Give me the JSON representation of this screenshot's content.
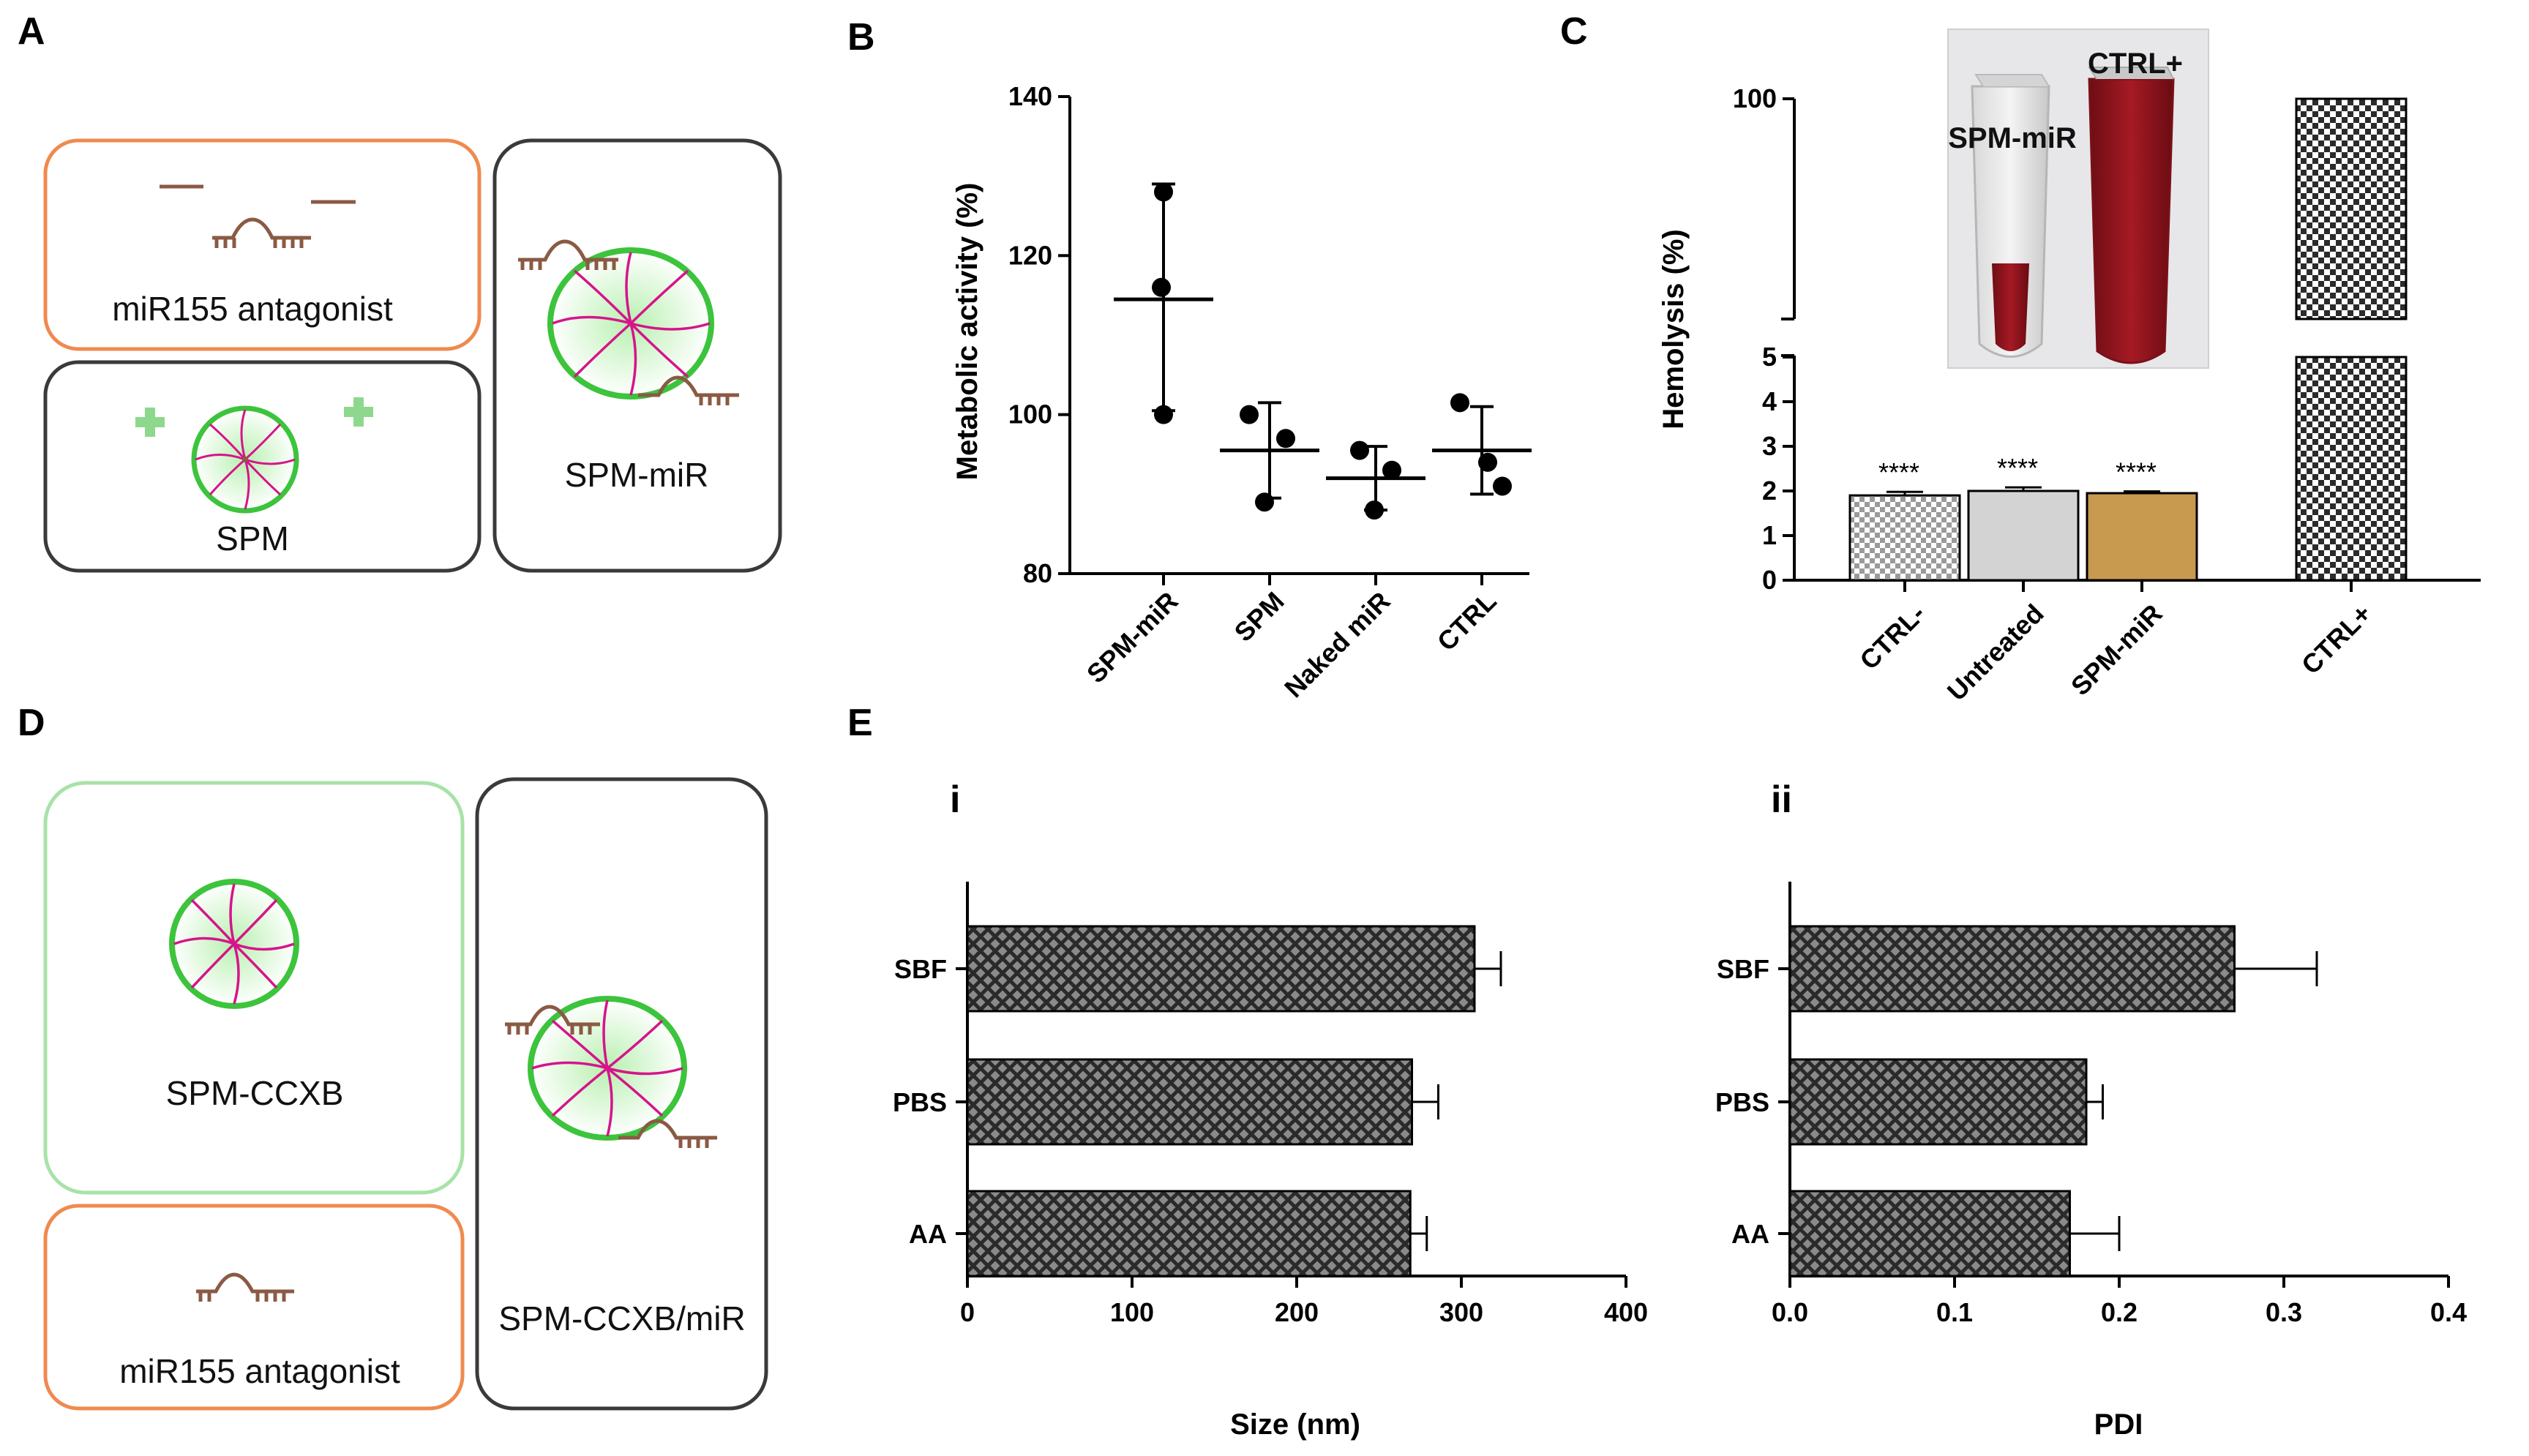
{
  "panels": {
    "A": "A",
    "B": "B",
    "C": "C",
    "D": "D",
    "E": "E",
    "Ei": "i",
    "Eii": "ii"
  },
  "schematic_A": {
    "antagonist": "miR155 antagonist",
    "spm": "SPM",
    "spm_mir": "SPM-miR"
  },
  "schematic_D": {
    "spm_ccxb": "SPM-CCXB",
    "antagonist": "miR155 antagonist",
    "spm_ccxb_mir": "SPM-CCXB/miR"
  },
  "photo": {
    "left": "SPM-miR",
    "right": "CTRL+"
  },
  "colors": {
    "orange": "#ef8a4f",
    "green_light": "#a8e2a8",
    "dark_border": "#3a3a3a",
    "micelle_green": "#3cc43c",
    "chain_magenta": "#d6148c",
    "rna_brown": "#8a5a44",
    "spm_mir_bar": "#c89a50",
    "untreated_bar": "#d3d3d3"
  },
  "chart_data": [
    {
      "id": "B",
      "type": "scatter",
      "categories": [
        "SPM-miR",
        "SPM",
        "Naked miR",
        "CTRL"
      ],
      "points": [
        [
          128,
          116,
          100
        ],
        [
          100,
          97,
          89
        ],
        [
          95.5,
          93,
          88
        ],
        [
          101.5,
          94,
          91
        ]
      ],
      "means": [
        114.5,
        95.5,
        92,
        95.5
      ],
      "error_low": [
        100.5,
        89.5,
        88,
        90
      ],
      "error_high": [
        129,
        101.5,
        96,
        101
      ],
      "ylabel": "Metabolic activity (%)",
      "ylim": [
        80,
        140
      ],
      "yticks": [
        "140",
        "120",
        "100",
        "80"
      ]
    },
    {
      "id": "C",
      "type": "bar",
      "categories": [
        "CTRL-",
        "Untreated",
        "SPM-miR",
        "CTRL+"
      ],
      "values": [
        1.9,
        2.0,
        1.95,
        100
      ],
      "errors": [
        0.08,
        0.08,
        0.04,
        0
      ],
      "annotations": [
        "****",
        "****",
        "****",
        ""
      ],
      "ylabel": "Hemolysis (%)",
      "yticks_lower": [
        "0",
        "1",
        "2",
        "3",
        "4",
        "5"
      ],
      "yticks_upper": [
        "100"
      ],
      "ylim": [
        0,
        100
      ],
      "axis_break": [
        5,
        95
      ]
    },
    {
      "id": "Ei",
      "type": "bar",
      "orientation": "horizontal",
      "categories": [
        "SBF",
        "PBS",
        "AA"
      ],
      "values": [
        308,
        270,
        269
      ],
      "errors": [
        16,
        16,
        10
      ],
      "xlabel": "Size (nm)",
      "xlim": [
        0,
        400
      ],
      "xticks": [
        "0",
        "100",
        "200",
        "300",
        "400"
      ]
    },
    {
      "id": "Eii",
      "type": "bar",
      "orientation": "horizontal",
      "categories": [
        "SBF",
        "PBS",
        "AA"
      ],
      "values": [
        0.27,
        0.18,
        0.17
      ],
      "errors": [
        0.05,
        0.01,
        0.03
      ],
      "xlabel": "PDI",
      "xlim": [
        0,
        0.4
      ],
      "xticks": [
        "0.0",
        "0.1",
        "0.2",
        "0.3",
        "0.4"
      ]
    }
  ]
}
